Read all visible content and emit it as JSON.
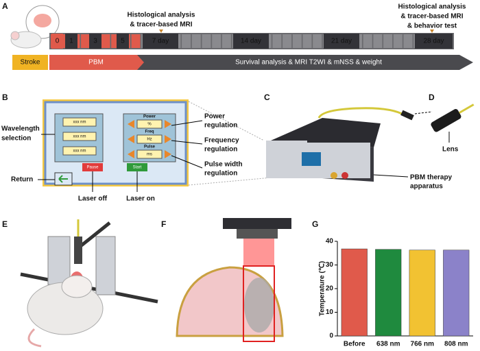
{
  "panels": [
    "A",
    "B",
    "C",
    "D",
    "E",
    "F",
    "G"
  ],
  "timeline": {
    "days": [
      "0",
      "1",
      "3",
      "5",
      "7 day",
      "14 day",
      "21 day",
      "28 day"
    ],
    "note_day7": [
      "Histological analysis",
      "& tracer-based MRI"
    ],
    "note_day28": [
      "Histological analysis",
      "& tracer-based MRI",
      "& behavior test"
    ],
    "phases": [
      "Stroke",
      "PBM",
      "Survival analysis & MRI T2WI & mNSS & weight"
    ]
  },
  "control_panel": {
    "wavelength_fields": [
      "xxx nm",
      "xxx nm",
      "xxx nm"
    ],
    "settings": [
      {
        "name": "Power",
        "unit": "%"
      },
      {
        "name": "Freq",
        "unit": "Hz"
      },
      {
        "name": "Pulse",
        "unit": "ms"
      }
    ],
    "buttons": [
      "Pause",
      "Start"
    ],
    "labels": {
      "wavelength": [
        "Wavelength",
        "selection"
      ],
      "return": "Return",
      "laser_off": "Laser off",
      "laser_on": "Laser on",
      "power": [
        "Power",
        "regulation"
      ],
      "frequency": [
        "Frequency",
        "regulation"
      ],
      "pulse": [
        "Pulse width",
        "regulation"
      ]
    }
  },
  "apparatus": {
    "label": [
      "PBM therapy",
      "apparatus"
    ],
    "lens": "Lens"
  },
  "chart_data": {
    "type": "bar",
    "ylabel": "Temperature (℃)",
    "categories": [
      "Before",
      "638 nm",
      "766 nm",
      "808 nm"
    ],
    "values": [
      36.8,
      36.6,
      36.3,
      36.3
    ],
    "colors": [
      "#e05a4b",
      "#1f8a3e",
      "#f2c232",
      "#8b82c9"
    ],
    "ylim": [
      0,
      40
    ],
    "yticks": [
      0,
      10,
      20,
      30,
      40
    ]
  }
}
